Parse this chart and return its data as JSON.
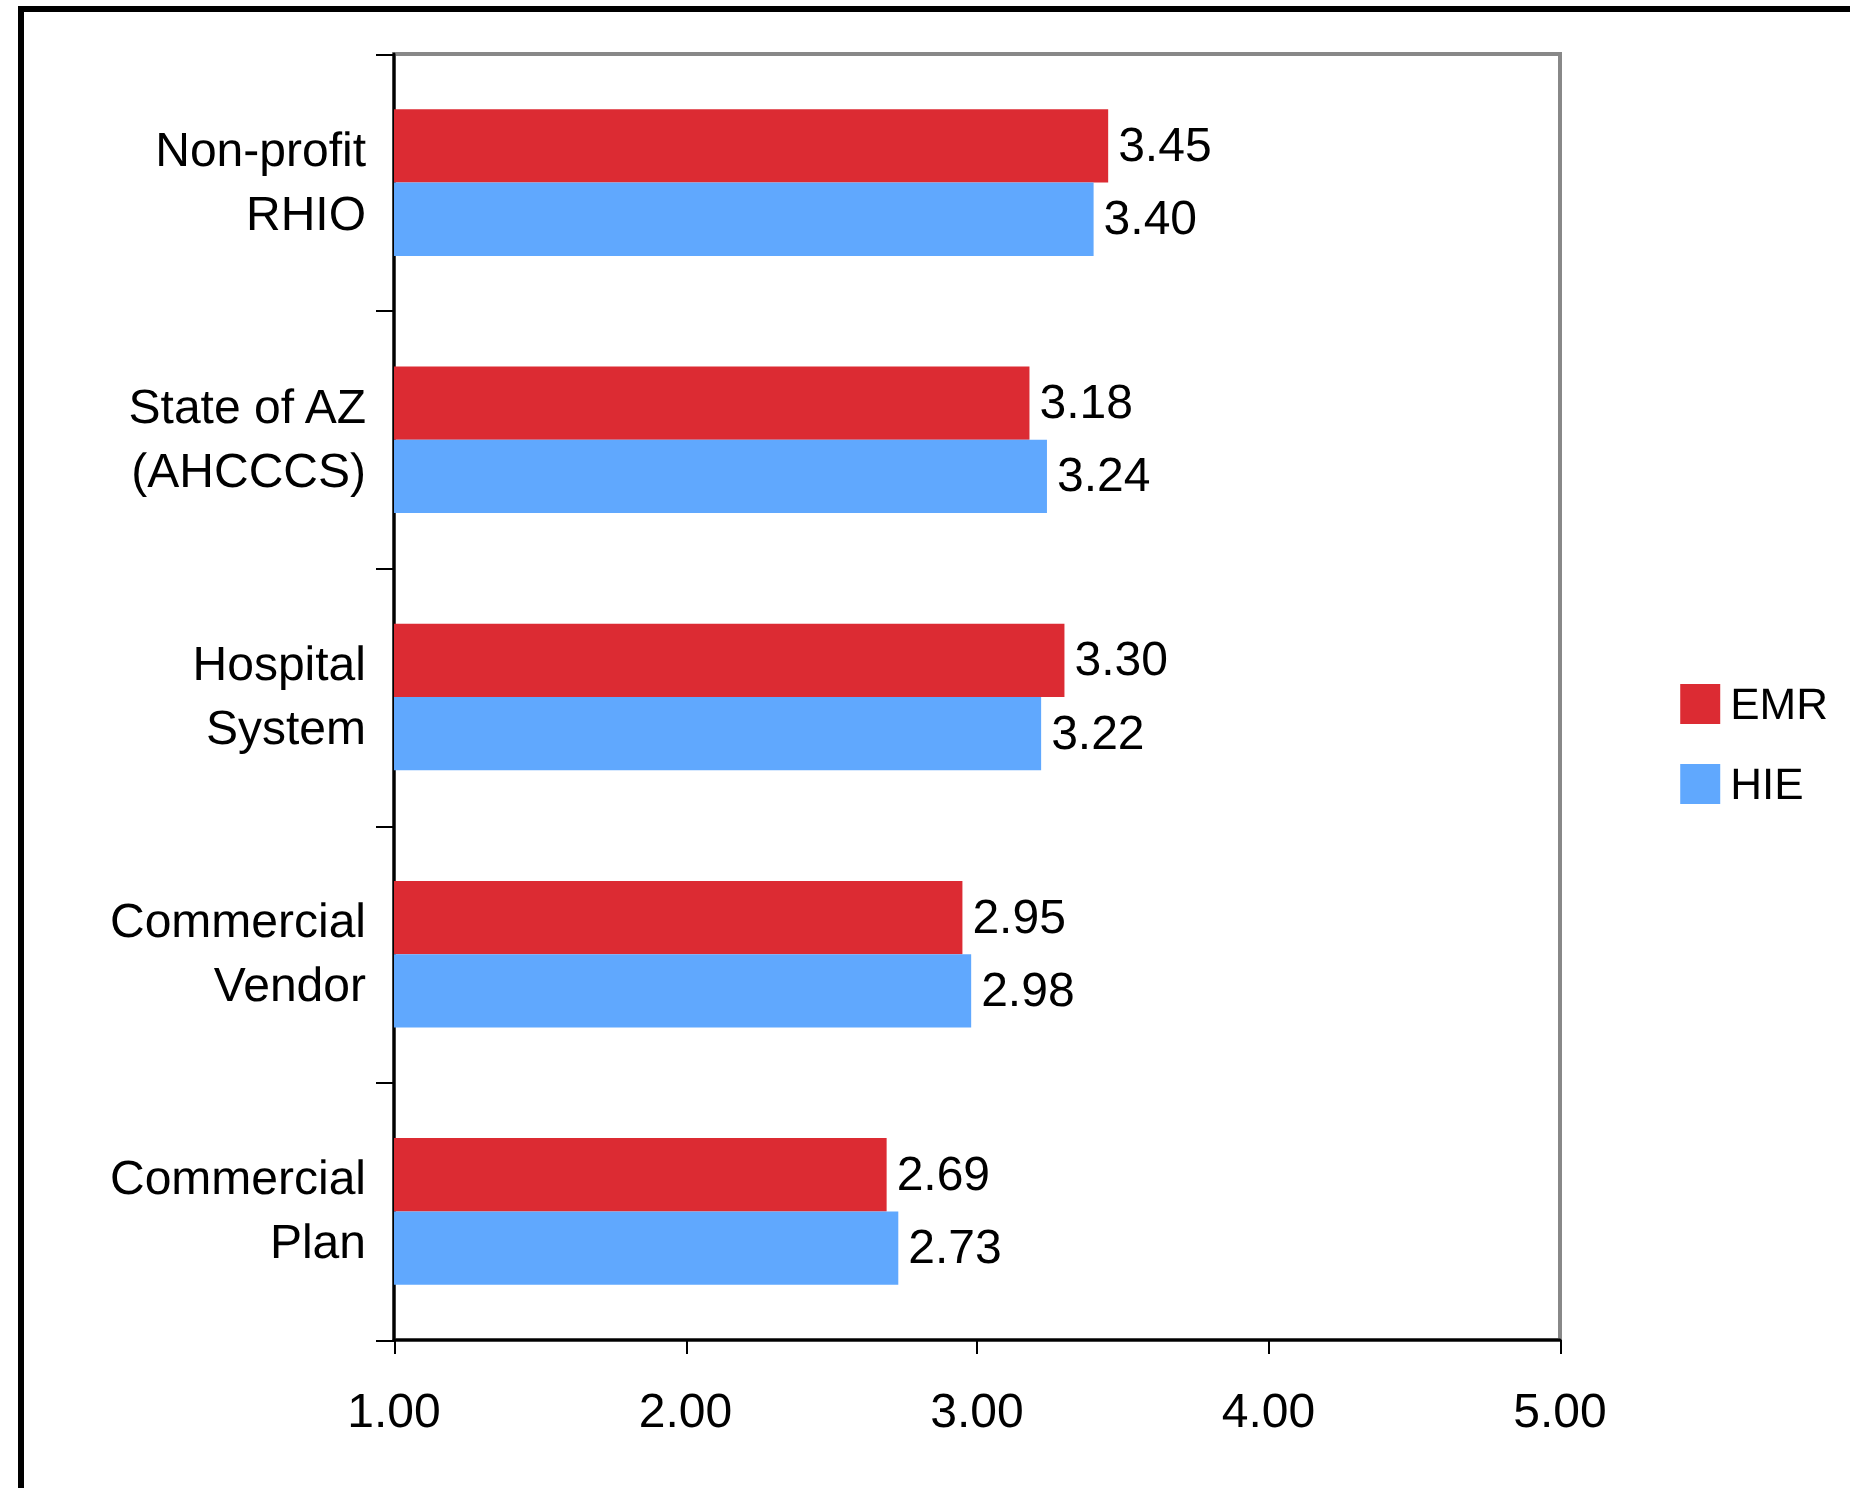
{
  "chart_data": {
    "type": "bar",
    "orientation": "horizontal",
    "categories": [
      "Non-profit\nRHIO",
      "State of AZ\n(AHCCCS)",
      "Hospital\nSystem",
      "Commercial\nVendor",
      "Commercial\nPlan"
    ],
    "series": [
      {
        "name": "EMR",
        "color": "#dc2b33",
        "values": [
          3.45,
          3.18,
          3.3,
          2.95,
          2.69
        ],
        "value_labels": [
          "3.45",
          "3.18",
          "3.30",
          "2.95",
          "2.69"
        ]
      },
      {
        "name": "HIE",
        "color": "#60a8fe",
        "values": [
          3.4,
          3.24,
          3.22,
          2.98,
          2.73
        ],
        "value_labels": [
          "3.40",
          "3.24",
          "3.22",
          "2.98",
          "2.73"
        ]
      }
    ],
    "xlim": [
      1,
      5
    ],
    "xticks": [
      {
        "value": 1,
        "label": "1.00"
      },
      {
        "value": 2,
        "label": "2.00"
      },
      {
        "value": 3,
        "label": "3.00"
      },
      {
        "value": 4,
        "label": "4.00"
      },
      {
        "value": 5,
        "label": "5.00"
      }
    ],
    "grid": false,
    "legend": "right"
  }
}
